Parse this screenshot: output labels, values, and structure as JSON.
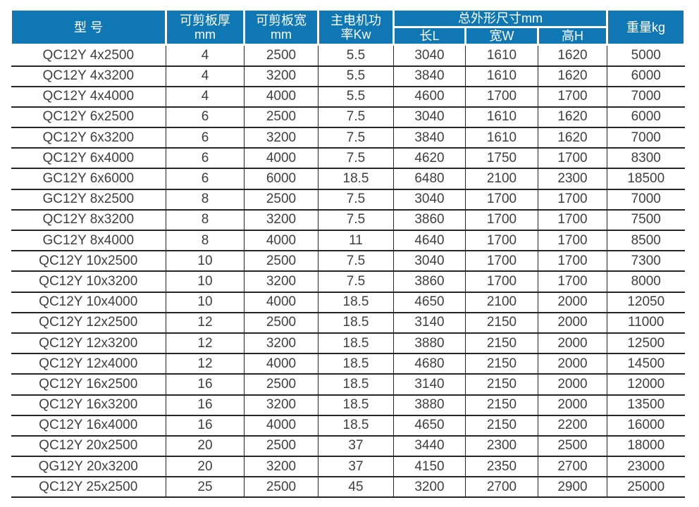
{
  "table": {
    "header": {
      "model": "型 号",
      "thickness": [
        "可剪板厚",
        "mm"
      ],
      "width": [
        "可剪板宽",
        "mm"
      ],
      "power": [
        "主电机功",
        "率Kw"
      ],
      "dims_group": "总外形尺寸mm",
      "dims": [
        "长L",
        "宽W",
        "高H"
      ],
      "weight": "重量kg"
    },
    "column_keys": [
      "model",
      "thickness-mm",
      "width-mm",
      "power-kw",
      "length-l",
      "width-w",
      "height-h",
      "weight-kg"
    ],
    "rows": [
      [
        "QC12Y 4x2500",
        "4",
        "2500",
        "5.5",
        "3040",
        "1610",
        "1620",
        "5000"
      ],
      [
        "QC12Y 4x3200",
        "4",
        "3200",
        "5.5",
        "3840",
        "1610",
        "1620",
        "6000"
      ],
      [
        "QC12Y 4x4000",
        "4",
        "4000",
        "5.5",
        "4600",
        "1700",
        "1700",
        "7000"
      ],
      [
        "QC12Y 6x2500",
        "6",
        "2500",
        "7.5",
        "3040",
        "1610",
        "1620",
        "6000"
      ],
      [
        "QC12Y 6x3200",
        "6",
        "3200",
        "7.5",
        "3840",
        "1610",
        "1620",
        "7000"
      ],
      [
        "QC12Y 6x4000",
        "6",
        "4000",
        "7.5",
        "4620",
        "1750",
        "1700",
        "8300"
      ],
      [
        "GC12Y 6x6000",
        "6",
        "6000",
        "18.5",
        "6480",
        "2100",
        "2300",
        "18500"
      ],
      [
        "GC12Y 8x2500",
        "8",
        "2500",
        "7.5",
        "3040",
        "1700",
        "1700",
        "7000"
      ],
      [
        "QC12Y 8x3200",
        "8",
        "3200",
        "7.5",
        "3860",
        "1700",
        "1700",
        "7500"
      ],
      [
        "GC12Y 8x4000",
        "8",
        "4000",
        "11",
        "4640",
        "1700",
        "1700",
        "8500"
      ],
      [
        "QC12Y 10x2500",
        "10",
        "2500",
        "7.5",
        "3040",
        "1700",
        "1700",
        "7300"
      ],
      [
        "QC12Y 10x3200",
        "10",
        "3200",
        "7.5",
        "3860",
        "1700",
        "1700",
        "8000"
      ],
      [
        "QC12Y 10x4000",
        "10",
        "4000",
        "18.5",
        "4650",
        "2100",
        "2000",
        "12050"
      ],
      [
        "QC12Y 12x2500",
        "12",
        "2500",
        "18.5",
        "3140",
        "2150",
        "2000",
        "11000"
      ],
      [
        "QC12Y 12x3200",
        "12",
        "3200",
        "18.5",
        "3880",
        "2150",
        "2000",
        "12500"
      ],
      [
        "QC12Y 12x4000",
        "12",
        "4000",
        "18.5",
        "4680",
        "2150",
        "2000",
        "14500"
      ],
      [
        "QC12Y 16x2500",
        "16",
        "2500",
        "18.5",
        "3140",
        "2150",
        "2000",
        "12000"
      ],
      [
        "QC12Y 16x3200",
        "16",
        "3200",
        "18.5",
        "3880",
        "2150",
        "2000",
        "13500"
      ],
      [
        "QC12Y 16x4000",
        "16",
        "4000",
        "18.5",
        "4650",
        "2150",
        "2200",
        "16000"
      ],
      [
        "QC12Y 20x2500",
        "20",
        "2500",
        "37",
        "3440",
        "2300",
        "2500",
        "18000"
      ],
      [
        "QG12Y 20x3200",
        "20",
        "3200",
        "37",
        "4150",
        "2350",
        "2700",
        "23000"
      ],
      [
        "QC12Y 25x2500",
        "25",
        "2500",
        "45",
        "3200",
        "2700",
        "2900",
        "25000"
      ]
    ]
  },
  "colors": {
    "header_bg": "#1077b5",
    "header_text": "#ffffff",
    "body_text": "#3f3f3f",
    "grid_line": "#262626"
  }
}
